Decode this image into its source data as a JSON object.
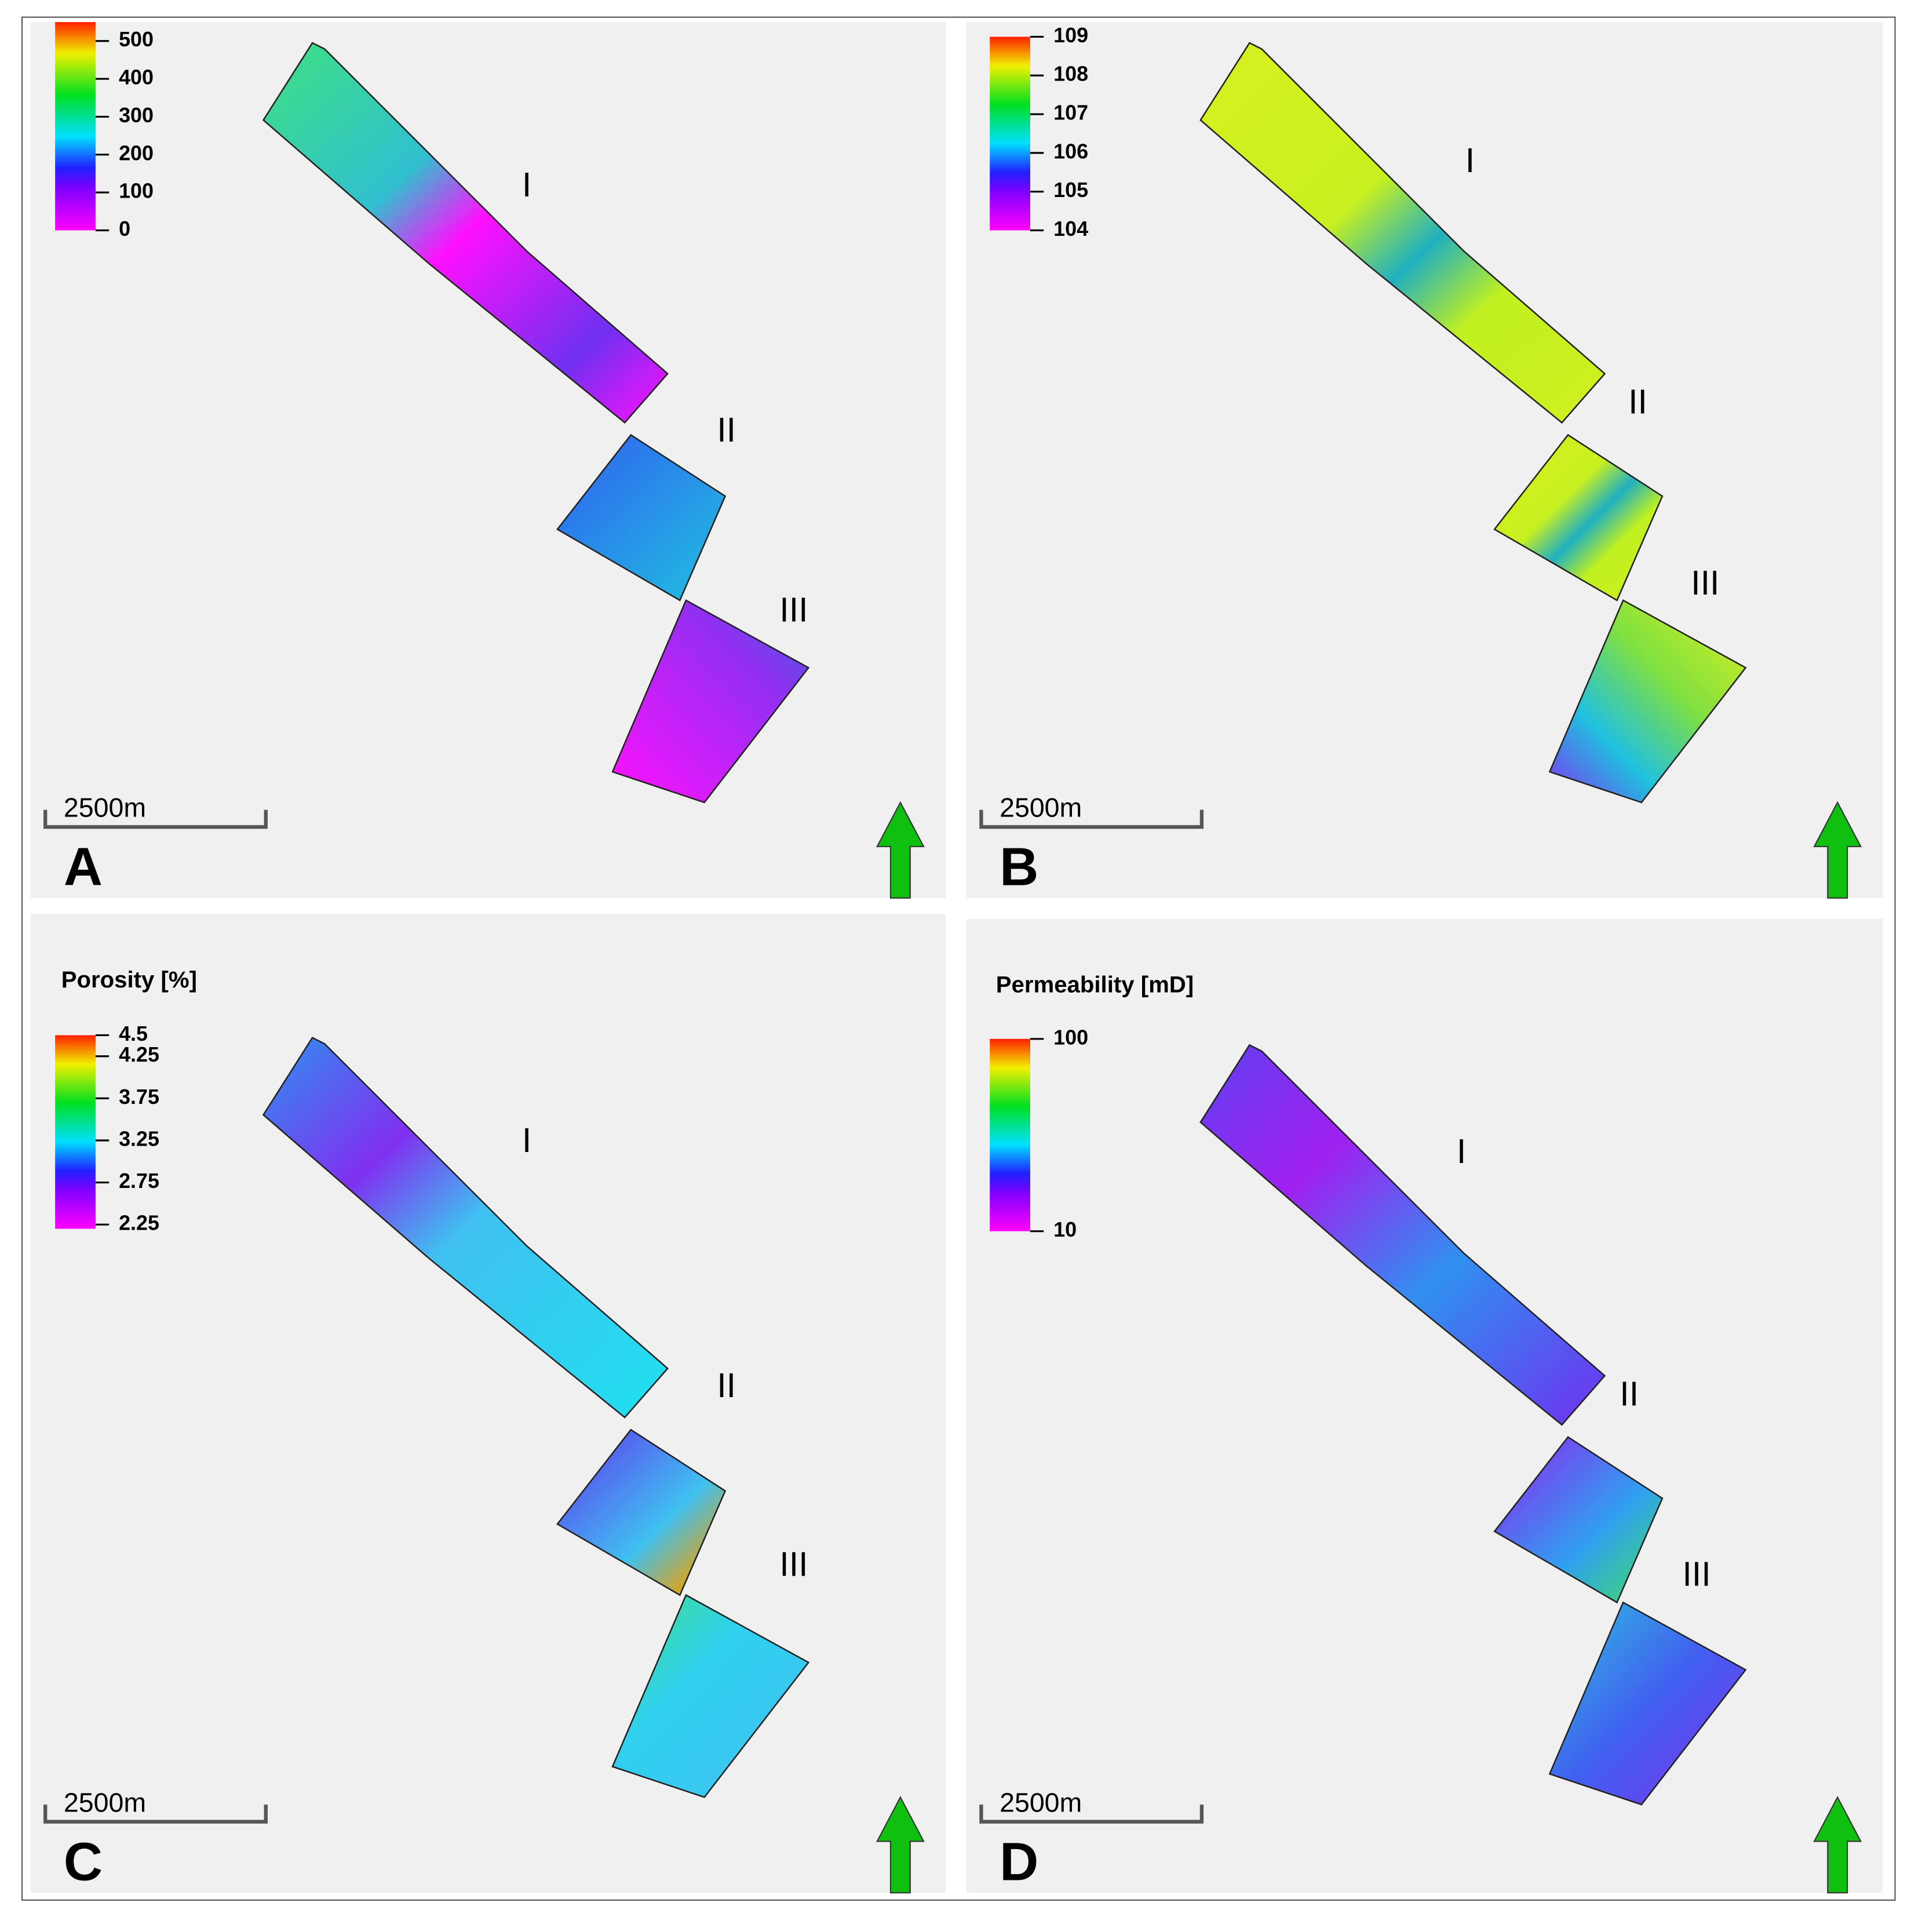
{
  "panels": [
    {
      "letter": "A",
      "colorbar": {
        "range": [
          0,
          550
        ],
        "ticks": [
          0,
          100,
          200,
          300,
          400,
          500
        ]
      },
      "regions": [
        "I",
        "II",
        "III"
      ],
      "scale_bar": "2500m"
    },
    {
      "letter": "B",
      "colorbar": {
        "range": [
          104,
          109
        ],
        "ticks": [
          104,
          105,
          106,
          107,
          108,
          109
        ]
      },
      "regions": [
        "I",
        "II",
        "III"
      ],
      "scale_bar": "2500m"
    },
    {
      "letter": "C",
      "title": "Porosity [%]",
      "colorbar": {
        "range": [
          2.2,
          4.5
        ],
        "ticks": [
          2.25,
          2.75,
          3.25,
          3.75,
          4.25,
          4.5
        ]
      },
      "regions": [
        "I",
        "II",
        "III"
      ],
      "scale_bar": "2500m"
    },
    {
      "letter": "D",
      "title": "Permeability [mD]",
      "colorbar": {
        "range": [
          10,
          100
        ],
        "log": true,
        "ticks": [
          10,
          100
        ]
      },
      "regions": [
        "I",
        "II",
        "III"
      ],
      "scale_bar": "2500m"
    }
  ]
}
